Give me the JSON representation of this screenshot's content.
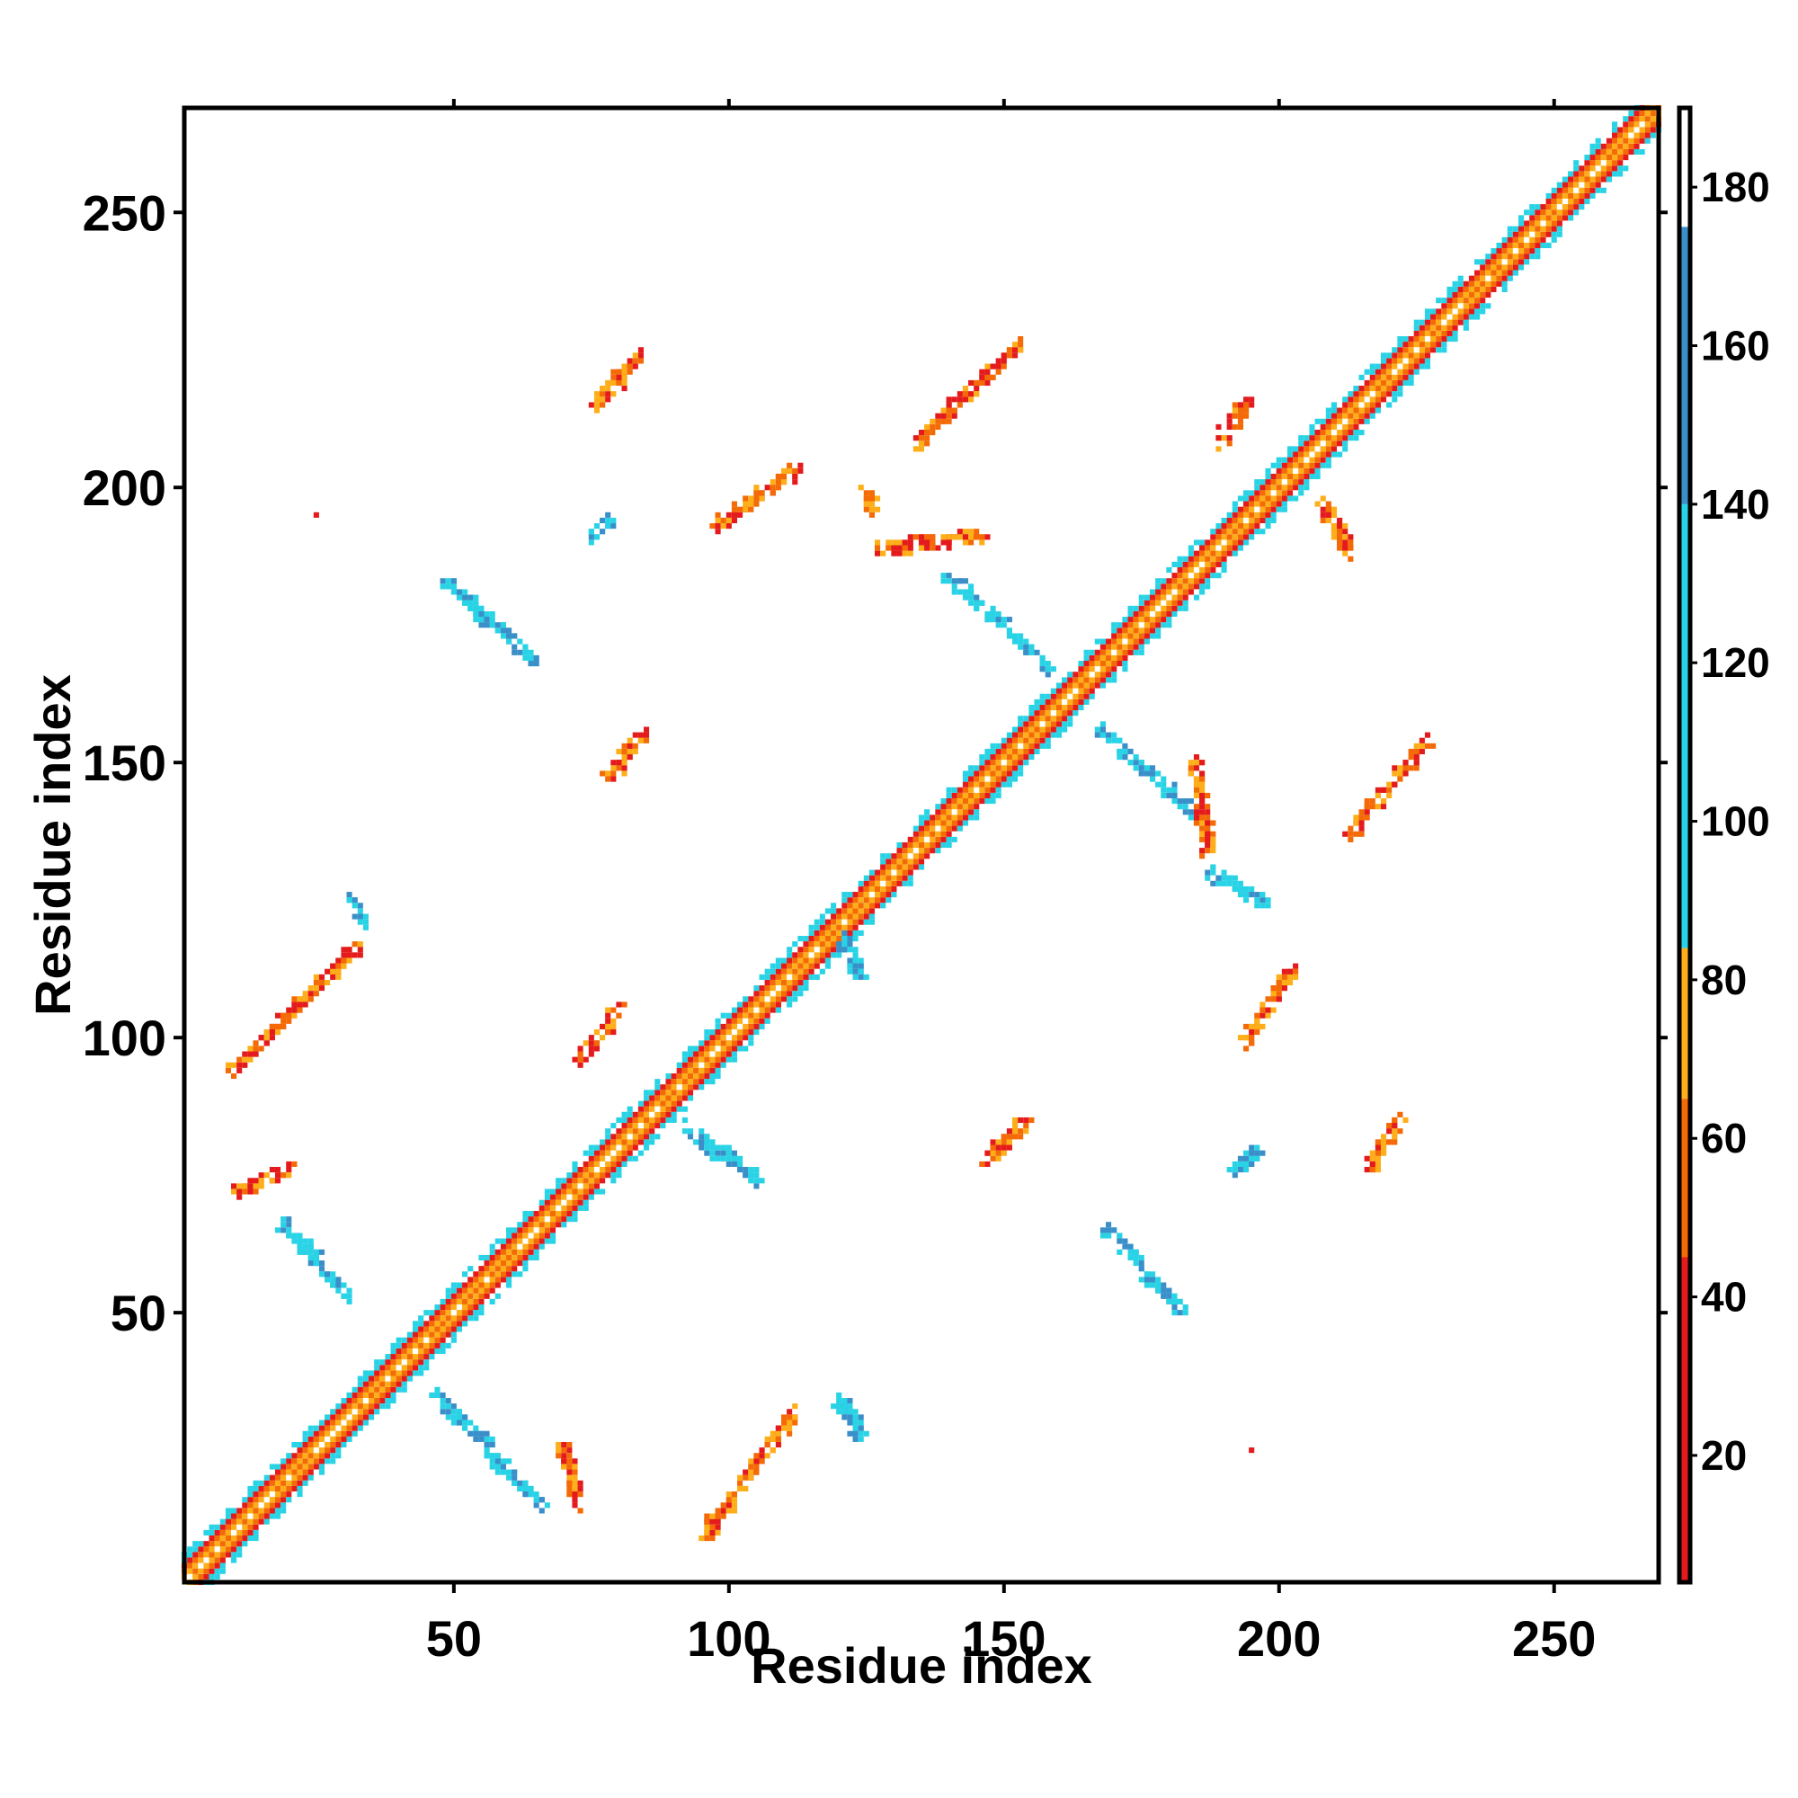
{
  "chart_data": {
    "type": "heatmap",
    "title": "",
    "xlabel": "Residue index",
    "ylabel": "Residue index",
    "xlim": [
      1,
      269
    ],
    "ylim": [
      1,
      269
    ],
    "x_ticks": [
      50,
      100,
      150,
      200,
      250
    ],
    "y_ticks": [
      50,
      100,
      150,
      200,
      250
    ],
    "grid": false,
    "colorbar": {
      "min": 4,
      "max": 190,
      "ticks": [
        20,
        40,
        60,
        80,
        100,
        120,
        140,
        160,
        180
      ],
      "bands": [
        {
          "from": 4,
          "to": 45,
          "color": "#e41a1c"
        },
        {
          "from": 45,
          "to": 65,
          "color": "#f46a06"
        },
        {
          "from": 65,
          "to": 84,
          "color": "#fdae18"
        },
        {
          "from": 84,
          "to": 140,
          "color": "#29d3e6"
        },
        {
          "from": 140,
          "to": 175,
          "color": "#3b8fc9"
        },
        {
          "from": 175,
          "to": 190,
          "color": "#ffffff"
        }
      ]
    },
    "diagonal_band": {
      "start": 1,
      "end": 269,
      "description": "near-diagonal contacts with colour varying by distance from diagonal"
    },
    "contact_segments": [
      {
        "x0": 10,
        "y0": 94,
        "x1": 32,
        "y1": 116,
        "color": "#e41a1c"
      },
      {
        "x0": 10,
        "y0": 71,
        "x1": 20,
        "y1": 76,
        "color": "#e41a1c"
      },
      {
        "x0": 19,
        "y0": 66,
        "x1": 31,
        "y1": 53,
        "color": "#29d3e6"
      },
      {
        "x0": 31,
        "y0": 125,
        "x1": 33,
        "y1": 121,
        "color": "#29d3e6"
      },
      {
        "x0": 47,
        "y0": 35,
        "x1": 66,
        "y1": 15,
        "color": "#29d3e6"
      },
      {
        "x0": 70,
        "y0": 25,
        "x1": 73,
        "y1": 15,
        "color": "#e41a1c"
      },
      {
        "x0": 96,
        "y0": 10,
        "x1": 112,
        "y1": 32,
        "color": "#e41a1c"
      },
      {
        "x0": 120,
        "y0": 34,
        "x1": 124,
        "y1": 28,
        "color": "#29d3e6"
      },
      {
        "x0": 49,
        "y0": 183,
        "x1": 65,
        "y1": 168,
        "color": "#29d3e6"
      },
      {
        "x0": 76,
        "y0": 215,
        "x1": 84,
        "y1": 224,
        "color": "#e41a1c"
      },
      {
        "x0": 75,
        "y0": 191,
        "x1": 78,
        "y1": 194,
        "color": "#29d3e6"
      },
      {
        "x0": 78,
        "y0": 147,
        "x1": 84,
        "y1": 155,
        "color": "#e41a1c"
      },
      {
        "x0": 73,
        "y0": 96,
        "x1": 80,
        "y1": 105,
        "color": "#e41a1c"
      },
      {
        "x0": 92,
        "y0": 84,
        "x1": 105,
        "y1": 74,
        "color": "#29d3e6"
      },
      {
        "x0": 98,
        "y0": 193,
        "x1": 112,
        "y1": 203,
        "color": "#e41a1c"
      },
      {
        "x0": 134,
        "y0": 208,
        "x1": 153,
        "y1": 226,
        "color": "#e41a1c"
      },
      {
        "x0": 125,
        "y0": 200,
        "x1": 126,
        "y1": 196,
        "color": "#fdae18"
      },
      {
        "x0": 128,
        "y0": 189,
        "x1": 146,
        "y1": 191,
        "color": "#e41a1c"
      },
      {
        "x0": 140,
        "y0": 184,
        "x1": 158,
        "y1": 167,
        "color": "#29d3e6"
      },
      {
        "x0": 147,
        "y0": 78,
        "x1": 154,
        "y1": 85,
        "color": "#e41a1c"
      },
      {
        "x0": 121,
        "y0": 118,
        "x1": 124,
        "y1": 111,
        "color": "#29d3e6"
      },
      {
        "x0": 169,
        "y0": 65,
        "x1": 183,
        "y1": 50,
        "color": "#29d3e6"
      },
      {
        "x0": 168,
        "y0": 156,
        "x1": 185,
        "y1": 140,
        "color": "#29d3e6"
      },
      {
        "x0": 185,
        "y0": 150,
        "x1": 187,
        "y1": 134,
        "color": "#e41a1c"
      },
      {
        "x0": 188,
        "y0": 130,
        "x1": 198,
        "y1": 124,
        "color": "#29d3e6"
      },
      {
        "x0": 194,
        "y0": 99,
        "x1": 202,
        "y1": 112,
        "color": "#e41a1c"
      },
      {
        "x0": 192,
        "y0": 76,
        "x1": 196,
        "y1": 79,
        "color": "#29d3e6"
      },
      {
        "x0": 213,
        "y0": 137,
        "x1": 227,
        "y1": 154,
        "color": "#e41a1c"
      },
      {
        "x0": 216,
        "y0": 76,
        "x1": 222,
        "y1": 85,
        "color": "#e41a1c"
      },
      {
        "x0": 189,
        "y0": 208,
        "x1": 194,
        "y1": 215,
        "color": "#e41a1c"
      },
      {
        "x0": 208,
        "y0": 197,
        "x1": 213,
        "y1": 188,
        "color": "#e41a1c"
      }
    ],
    "isolated_points": [
      {
        "x": 25,
        "y": 195,
        "color": "#e41a1c"
      },
      {
        "x": 195,
        "y": 25,
        "color": "#e41a1c"
      }
    ]
  }
}
